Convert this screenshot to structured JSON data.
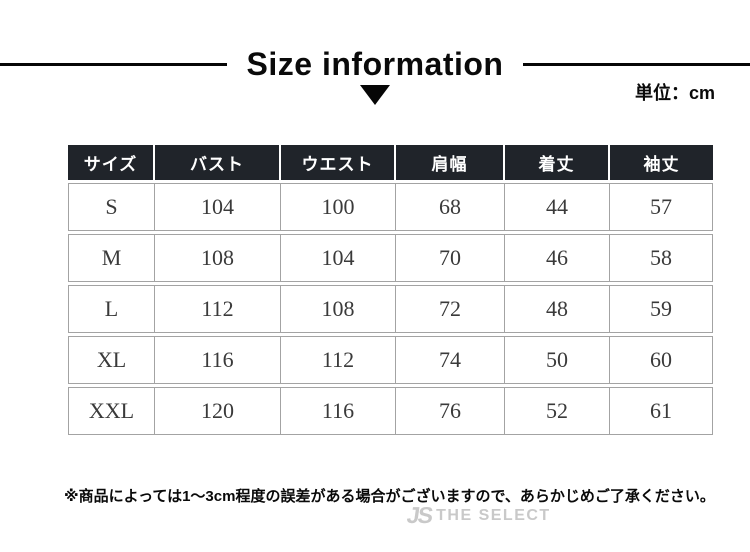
{
  "header": {
    "title": "Size information",
    "unit_label": "単位：cm"
  },
  "chart_data": {
    "type": "table",
    "title": "Size information",
    "unit": "cm",
    "columns": [
      "サイズ",
      "バスト",
      "ウエスト",
      "肩幅",
      "着丈",
      "袖丈"
    ],
    "rows": [
      [
        "S",
        "104",
        "100",
        "68",
        "44",
        "57"
      ],
      [
        "M",
        "108",
        "104",
        "70",
        "46",
        "58"
      ],
      [
        "L",
        "112",
        "108",
        "72",
        "48",
        "59"
      ],
      [
        "XL",
        "116",
        "112",
        "74",
        "50",
        "60"
      ],
      [
        "XXL",
        "120",
        "116",
        "76",
        "52",
        "61"
      ]
    ]
  },
  "footer": {
    "note": "※商品によっては1〜3cm程度の誤差がある場合がございますので、あらかじめご了承ください。",
    "watermark_mark": "JS",
    "watermark_text": "THE SELECT"
  },
  "colors": {
    "header_bg": "#20242a",
    "table_border": "#a3a3a3",
    "title_black": "#0a0a0a",
    "watermark_gray": "#c9c9c9"
  }
}
